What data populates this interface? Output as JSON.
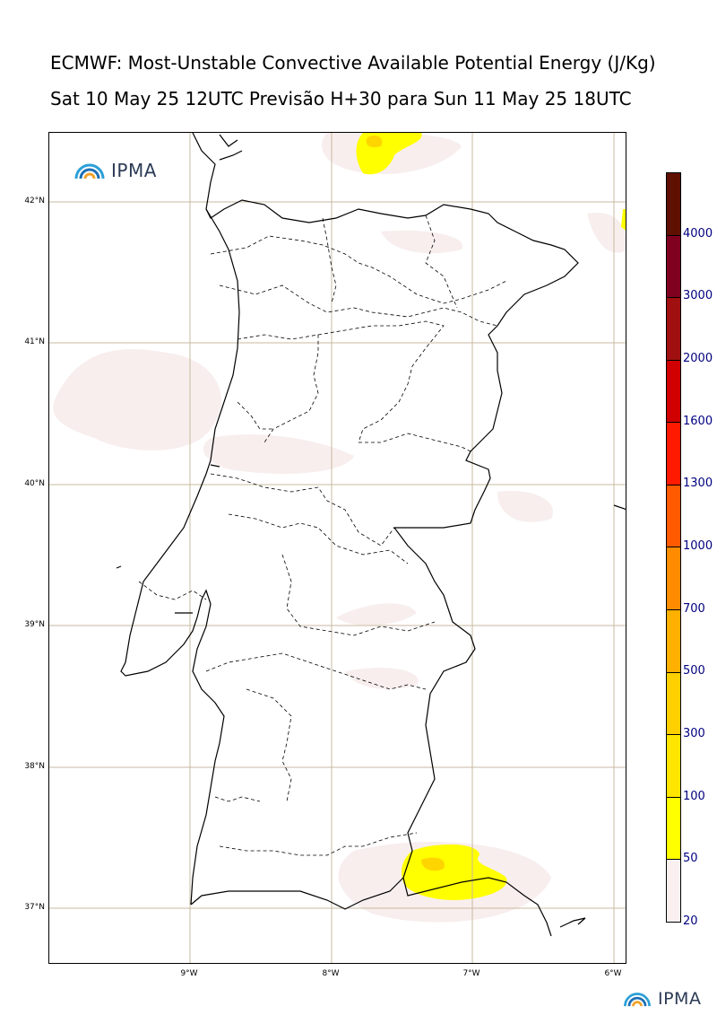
{
  "title_line1": "ECMWF: Most-Unstable Convective Available Potential Energy (J/Kg)",
  "title_line2": "Sat 10 May 25 12UTC Previsão H+30 para Sun 11 May 25 18UTC",
  "logo_text": "IPMA",
  "footer_logo_text": "IPMA",
  "lat_labels": [
    "42°N",
    "41°N",
    "40°N",
    "39°N",
    "38°N",
    "37°N"
  ],
  "lon_labels": [
    "9°W",
    "8°W",
    "7°W",
    "6°W"
  ],
  "colorbar": {
    "levels": [
      "20",
      "50",
      "100",
      "300",
      "500",
      "700",
      "1000",
      "1300",
      "1600",
      "2000",
      "3000",
      "4000"
    ],
    "colors": [
      "#fbf0f0",
      "#ffff00",
      "#ffe600",
      "#ffd000",
      "#ffb000",
      "#ff8c00",
      "#ff5a00",
      "#ff1a00",
      "#d00000",
      "#a01010",
      "#800020",
      "#601000"
    ]
  },
  "colors": {
    "gridline": "#c8b8a0",
    "light_pink": "#f8eeee",
    "yellow": "#ffff00",
    "gold": "#ffd500"
  }
}
